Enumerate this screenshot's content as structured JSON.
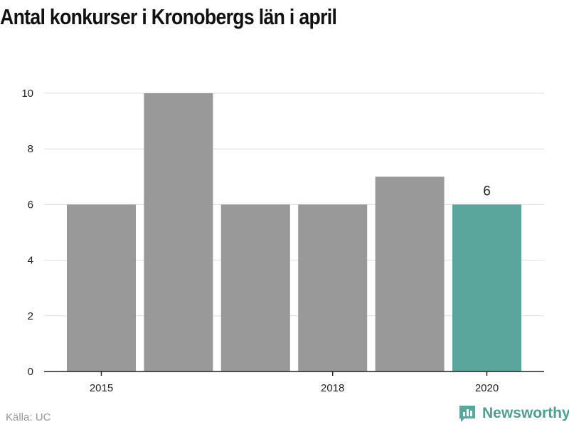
{
  "chart_data": {
    "type": "bar",
    "title": "Antal konkurser i Kronobergs län i april",
    "categories": [
      "2015",
      "2016",
      "2017",
      "2018",
      "2019",
      "2020"
    ],
    "values": [
      6,
      10,
      6,
      6,
      7,
      6
    ],
    "highlight_index": 5,
    "highlight_label": "6",
    "x_tick_labels": [
      "2015",
      "2018",
      "2020"
    ],
    "y_ticks": [
      "0",
      "2",
      "4",
      "6",
      "8",
      "10"
    ],
    "ylim": [
      0,
      10
    ],
    "grid": true,
    "colors": {
      "bar": "#999999",
      "highlight": "#5ba69c",
      "grid": "#dddddd",
      "axis": "#222222"
    }
  },
  "footer": {
    "source": "Källa: UC",
    "brand": "Newsworthy"
  }
}
